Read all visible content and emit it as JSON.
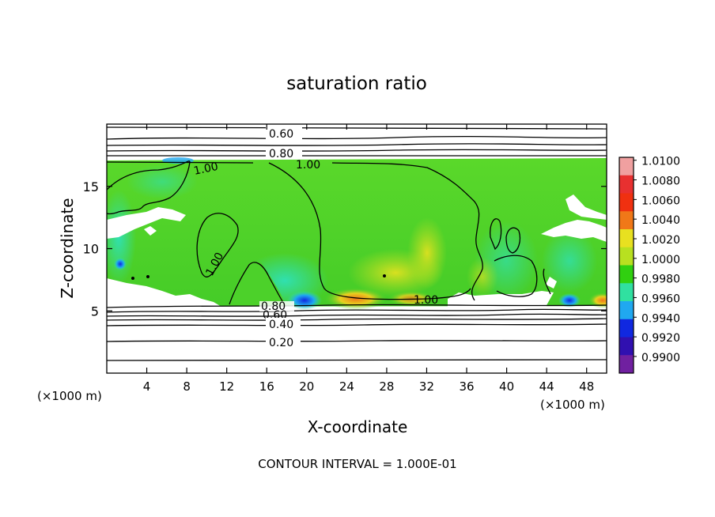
{
  "chart_data": {
    "type": "heatmap",
    "title": "saturation ratio",
    "xlabel": "X-coordinate",
    "ylabel": "Z-coordinate",
    "x_unit_left": "(×1000 m)",
    "x_unit_right": "(×1000 m)",
    "footer": "CONTOUR INTERVAL = 1.000E-01",
    "xlim": [
      0,
      50
    ],
    "ylim": [
      0,
      20
    ],
    "x_ticks": [
      4,
      8,
      12,
      16,
      20,
      24,
      28,
      32,
      36,
      40,
      44,
      48
    ],
    "y_ticks": [
      5,
      10,
      15
    ],
    "colorbar": {
      "labels": [
        "1.0100",
        "1.0080",
        "1.0060",
        "1.0040",
        "1.0020",
        "1.0000",
        "0.9980",
        "0.9960",
        "0.9940",
        "0.9920",
        "0.9900"
      ],
      "colors": [
        "#f0a0a0",
        "#e83030",
        "#f03010",
        "#f07818",
        "#e8e020",
        "#b8e020",
        "#30d010",
        "#30e0a0",
        "#20a8f0",
        "#1028e0",
        "#3010b0",
        "#7020a0"
      ]
    },
    "cloud_layer_z": [
      5.5,
      17
    ],
    "contour_labels": [
      "0.60",
      "0.80",
      "1.00",
      "1.00",
      "1.00",
      "1.00",
      "0.80",
      "0.60",
      "0.40",
      "0.20"
    ],
    "colors": {
      "field_base": "#4cd12a",
      "field_warm": "#b8e020",
      "field_cool": "#30e0b0",
      "field_hot": "#f07818",
      "field_low": "#1028e0",
      "contour": "#000000"
    }
  }
}
